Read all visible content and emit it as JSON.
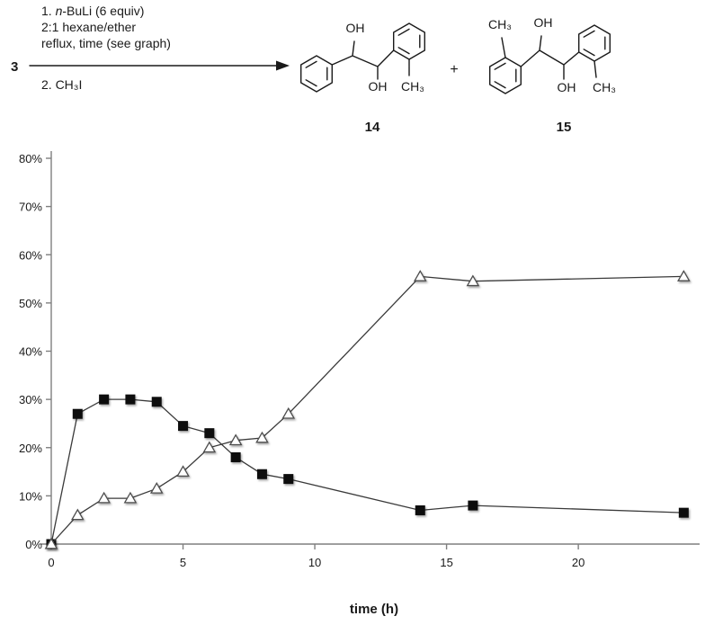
{
  "scheme": {
    "reactant": "3",
    "cond1_prefix": "1. ",
    "cond1_italic": "n",
    "cond1_rest": "-BuLi (6 equiv)",
    "cond2": "2:1 hexane/ether",
    "cond3": "reflux, time (see graph)",
    "cond_below": "2. CH₃I",
    "plus": "+",
    "products": {
      "p14": {
        "label": "14",
        "oh_top": "OH",
        "oh_bottom": "OH",
        "ch3_ring": "CH₃"
      },
      "p15": {
        "label": "15",
        "ch3_top": "CH₃",
        "oh_top": "OH",
        "oh_bottom": "OH",
        "ch3_bottom": "CH₃"
      }
    }
  },
  "chart_data": {
    "type": "line",
    "title": "",
    "xlabel": "time (h)",
    "ylabel": "",
    "x": [
      0,
      1,
      2,
      3,
      4,
      5,
      6,
      7,
      8,
      9,
      14,
      16,
      24
    ],
    "series": [
      {
        "name": "filled-square-series",
        "marker": "square",
        "values": [
          0,
          27,
          30,
          30,
          29.5,
          24.5,
          23,
          18,
          14.5,
          13.5,
          7,
          8,
          6.5
        ]
      },
      {
        "name": "open-triangle-series",
        "marker": "triangle",
        "values": [
          0,
          6,
          9.5,
          9.5,
          11.5,
          15,
          20,
          21.5,
          22,
          27,
          55.5,
          54.5,
          55.5
        ]
      }
    ],
    "xlim": [
      0,
      24.5
    ],
    "ylim": [
      0,
      80
    ],
    "x_ticks": [
      0,
      5,
      10,
      15,
      20
    ],
    "y_ticks": [
      "0%",
      "10%",
      "20%",
      "30%",
      "40%",
      "50%",
      "60%",
      "70%",
      "80%"
    ],
    "grid": false,
    "legend": "none",
    "axis_color": "#7f7f7f",
    "line_color": "#3a3a3a",
    "square_fill": "#0d0d0d",
    "triangle_fill": "#ffffff",
    "triangle_stroke": "#4d4d4d"
  }
}
